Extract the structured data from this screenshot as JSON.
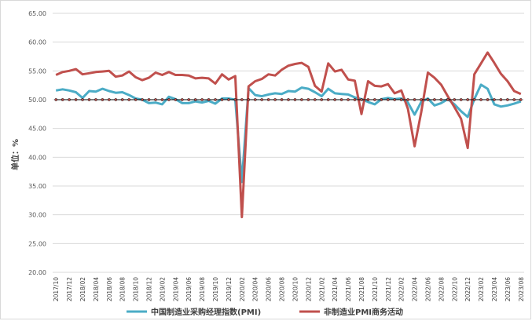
{
  "chart_data": {
    "type": "line",
    "ylabel": "单位：%",
    "ylim": [
      20,
      65
    ],
    "ytick_step": 5,
    "yticks": [
      "20.00",
      "25.00",
      "30.00",
      "35.00",
      "40.00",
      "45.00",
      "50.00",
      "55.00",
      "60.00",
      "65.00"
    ],
    "reference_line": 50,
    "colors": {
      "pmi": "#4bacc6",
      "nonmfg": "#c0504d",
      "ref": "#000000",
      "grid": "#d9d9d9"
    },
    "categories": [
      "2017/10",
      "2017/11",
      "2017/12",
      "2018/01",
      "2018/02",
      "2018/03",
      "2018/04",
      "2018/05",
      "2018/06",
      "2018/07",
      "2018/08",
      "2018/09",
      "2018/10",
      "2018/11",
      "2018/12",
      "2019/01",
      "2019/02",
      "2019/03",
      "2019/04",
      "2019/05",
      "2019/06",
      "2019/07",
      "2019/08",
      "2019/09",
      "2019/10",
      "2019/11",
      "2019/12",
      "2020/01",
      "2020/02",
      "2020/03",
      "2020/04",
      "2020/05",
      "2020/06",
      "2020/07",
      "2020/08",
      "2020/09",
      "2020/10",
      "2020/11",
      "2020/12",
      "2021/01",
      "2021/02",
      "2021/03",
      "2021/04",
      "2021/05",
      "2021/06",
      "2021/07",
      "2021/08",
      "2021/09",
      "2021/10",
      "2021/11",
      "2021/12",
      "2022/01",
      "2022/02",
      "2022/03",
      "2022/04",
      "2022/05",
      "2022/06",
      "2022/07",
      "2022/08",
      "2022/09",
      "2022/10",
      "2022/11",
      "2022/12",
      "2023/01",
      "2023/02",
      "2023/03",
      "2023/04",
      "2023/05",
      "2023/06",
      "2023/07",
      "2023/08"
    ],
    "tick_labels": [
      "2017/10",
      "2017/12",
      "2018/02",
      "2018/04",
      "2018/06",
      "2018/08",
      "2018/10",
      "2018/12",
      "2019/02",
      "2019/04",
      "2019/06",
      "2019/08",
      "2019/10",
      "2019/12",
      "2020/02",
      "2020/04",
      "2020/06",
      "2020/08",
      "2020/10",
      "2020/12",
      "2021/02",
      "2021/04",
      "2021/06",
      "2021/08",
      "2021/10",
      "2021/12",
      "2022/02",
      "2022/04",
      "2022/06",
      "2022/08",
      "2022/10",
      "2022/12",
      "2023/02",
      "2023/04",
      "2023/06",
      "2023/08"
    ],
    "series": [
      {
        "key": "pmi",
        "name": "中国制造业采购经理指数(PMI)",
        "values": [
          51.6,
          51.8,
          51.6,
          51.3,
          50.3,
          51.5,
          51.4,
          51.9,
          51.5,
          51.2,
          51.3,
          50.8,
          50.2,
          50.0,
          49.4,
          49.5,
          49.2,
          50.5,
          50.1,
          49.4,
          49.4,
          49.7,
          49.5,
          49.8,
          49.3,
          50.2,
          50.2,
          50.0,
          35.7,
          52.0,
          50.8,
          50.6,
          50.9,
          51.1,
          51.0,
          51.5,
          51.4,
          52.1,
          51.9,
          51.3,
          50.6,
          51.9,
          51.1,
          51.0,
          50.9,
          50.4,
          50.1,
          49.6,
          49.2,
          50.1,
          50.3,
          50.1,
          50.2,
          49.5,
          47.4,
          49.6,
          50.2,
          49.0,
          49.4,
          50.1,
          49.2,
          48.0,
          47.0,
          50.1,
          52.6,
          51.9,
          49.2,
          48.8,
          49.0,
          49.3,
          49.7
        ]
      },
      {
        "key": "nonmfg",
        "name": "非制造业PMI商务活动",
        "values": [
          54.3,
          54.8,
          55.0,
          55.3,
          54.4,
          54.6,
          54.8,
          54.9,
          55.0,
          54.0,
          54.2,
          54.9,
          53.9,
          53.4,
          53.8,
          54.7,
          54.3,
          54.8,
          54.3,
          54.3,
          54.2,
          53.7,
          53.8,
          53.7,
          52.8,
          54.4,
          53.5,
          54.1,
          29.6,
          52.3,
          53.2,
          53.6,
          54.4,
          54.2,
          55.2,
          55.9,
          56.2,
          56.4,
          55.7,
          52.4,
          51.4,
          56.3,
          54.9,
          55.2,
          53.5,
          53.3,
          47.5,
          53.2,
          52.4,
          52.3,
          52.7,
          51.1,
          51.6,
          48.4,
          41.9,
          47.8,
          54.7,
          53.8,
          52.6,
          50.6,
          48.7,
          46.7,
          41.6,
          54.4,
          56.3,
          58.2,
          56.4,
          54.5,
          53.2,
          51.5,
          51.0
        ]
      }
    ]
  }
}
